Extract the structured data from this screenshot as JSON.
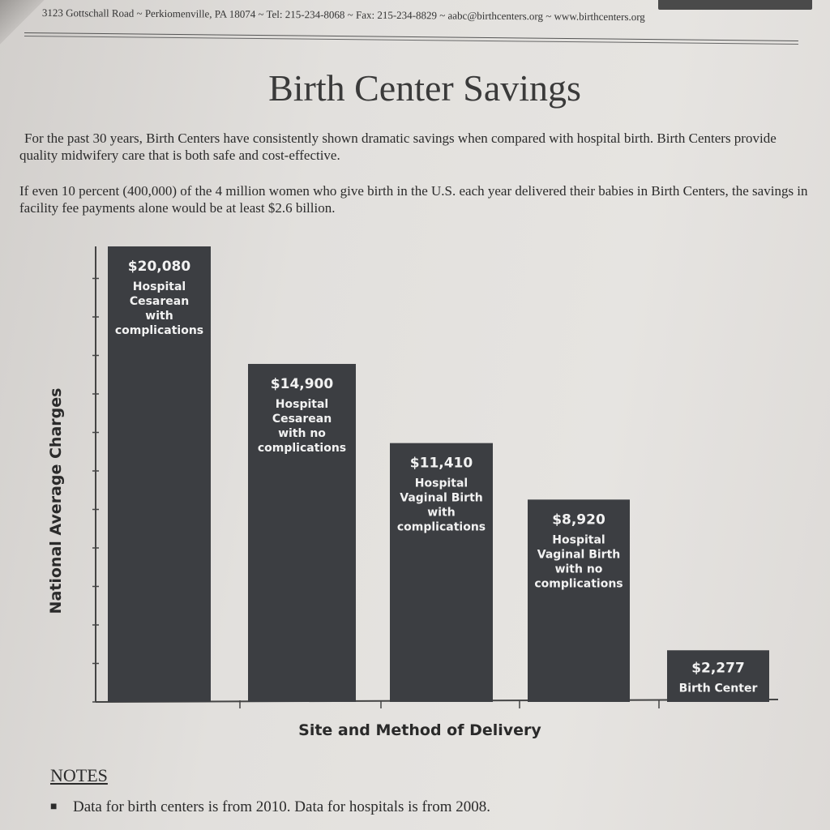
{
  "header": {
    "address_line": "3123 Gottschall Road ~ Perkiomenville, PA 18074 ~ Tel: 215-234-8068 ~ Fax: 215-234-8829 ~ aabc@birthcenters.org ~ www.birthcenters.org"
  },
  "title": "Birth Center Savings",
  "paragraphs": {
    "p1": "For the past 30 years, Birth Centers have consistently shown dramatic savings when compared with hospital birth.  Birth Centers provide quality midwifery care that is both safe and cost-effective.",
    "p2": "If even 10 percent (400,000) of the 4 million women who give birth in the U.S. each year delivered their babies in Birth Centers, the savings in facility fee payments alone would be at least $2.6 billion."
  },
  "chart_data": {
    "type": "bar",
    "title": "",
    "xlabel": "Site and Method of Delivery",
    "ylabel": "National Average Charges",
    "ylim": [
      0,
      20080
    ],
    "grid": false,
    "legend": "none",
    "bar_color": "#3c3e42",
    "categories": [
      [
        "Hospital",
        "Cesarean",
        "with",
        "complications"
      ],
      [
        "Hospital",
        "Cesarean",
        "with no",
        "complications"
      ],
      [
        "Hospital",
        "Vaginal Birth",
        "with",
        "complications"
      ],
      [
        "Hospital",
        "Vaginal Birth",
        "with no",
        "complications"
      ],
      [
        "Birth Center"
      ]
    ],
    "values": [
      20080,
      14900,
      11410,
      8920,
      2277
    ],
    "value_labels": [
      "$20,080",
      "$14,900",
      "$11,410",
      "$8,920",
      "$2,277"
    ]
  },
  "notes": {
    "title": "NOTES",
    "items": [
      "Data for birth centers is from 2010.  Data for hospitals is from 2008."
    ]
  }
}
